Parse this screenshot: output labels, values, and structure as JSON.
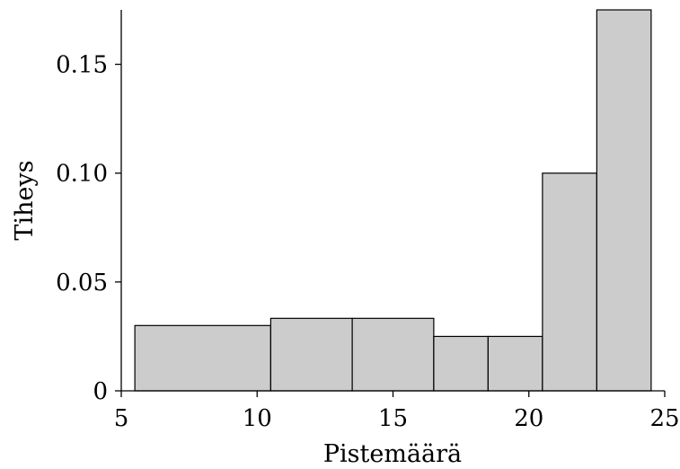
{
  "chart_data": {
    "type": "bar",
    "subtype": "histogram",
    "title": "",
    "xlabel": "Pistemäärä",
    "ylabel": "Tiheys",
    "xlim": [
      5,
      25
    ],
    "ylim": [
      0,
      0.175
    ],
    "x_ticks": [
      {
        "value": 5,
        "label": "5"
      },
      {
        "value": 10,
        "label": "10"
      },
      {
        "value": 15,
        "label": "15"
      },
      {
        "value": 20,
        "label": "20"
      },
      {
        "value": 25,
        "label": "25"
      }
    ],
    "y_ticks": [
      {
        "value": 0,
        "label": "0"
      },
      {
        "value": 0.05,
        "label": "0.05"
      },
      {
        "value": 0.1,
        "label": "0.10"
      },
      {
        "value": 0.15,
        "label": "0.15"
      }
    ],
    "bins": [
      {
        "start": 5.5,
        "end": 10.5,
        "density": 0.03
      },
      {
        "start": 10.5,
        "end": 13.5,
        "density": 0.0333
      },
      {
        "start": 13.5,
        "end": 16.5,
        "density": 0.0333
      },
      {
        "start": 16.5,
        "end": 18.5,
        "density": 0.025
      },
      {
        "start": 18.5,
        "end": 20.5,
        "density": 0.025
      },
      {
        "start": 20.5,
        "end": 22.5,
        "density": 0.1
      },
      {
        "start": 22.5,
        "end": 24.5,
        "density": 0.175
      }
    ],
    "bar_color": "#cccccc",
    "edge_color": "#000000",
    "grid": false,
    "legend": "none"
  }
}
